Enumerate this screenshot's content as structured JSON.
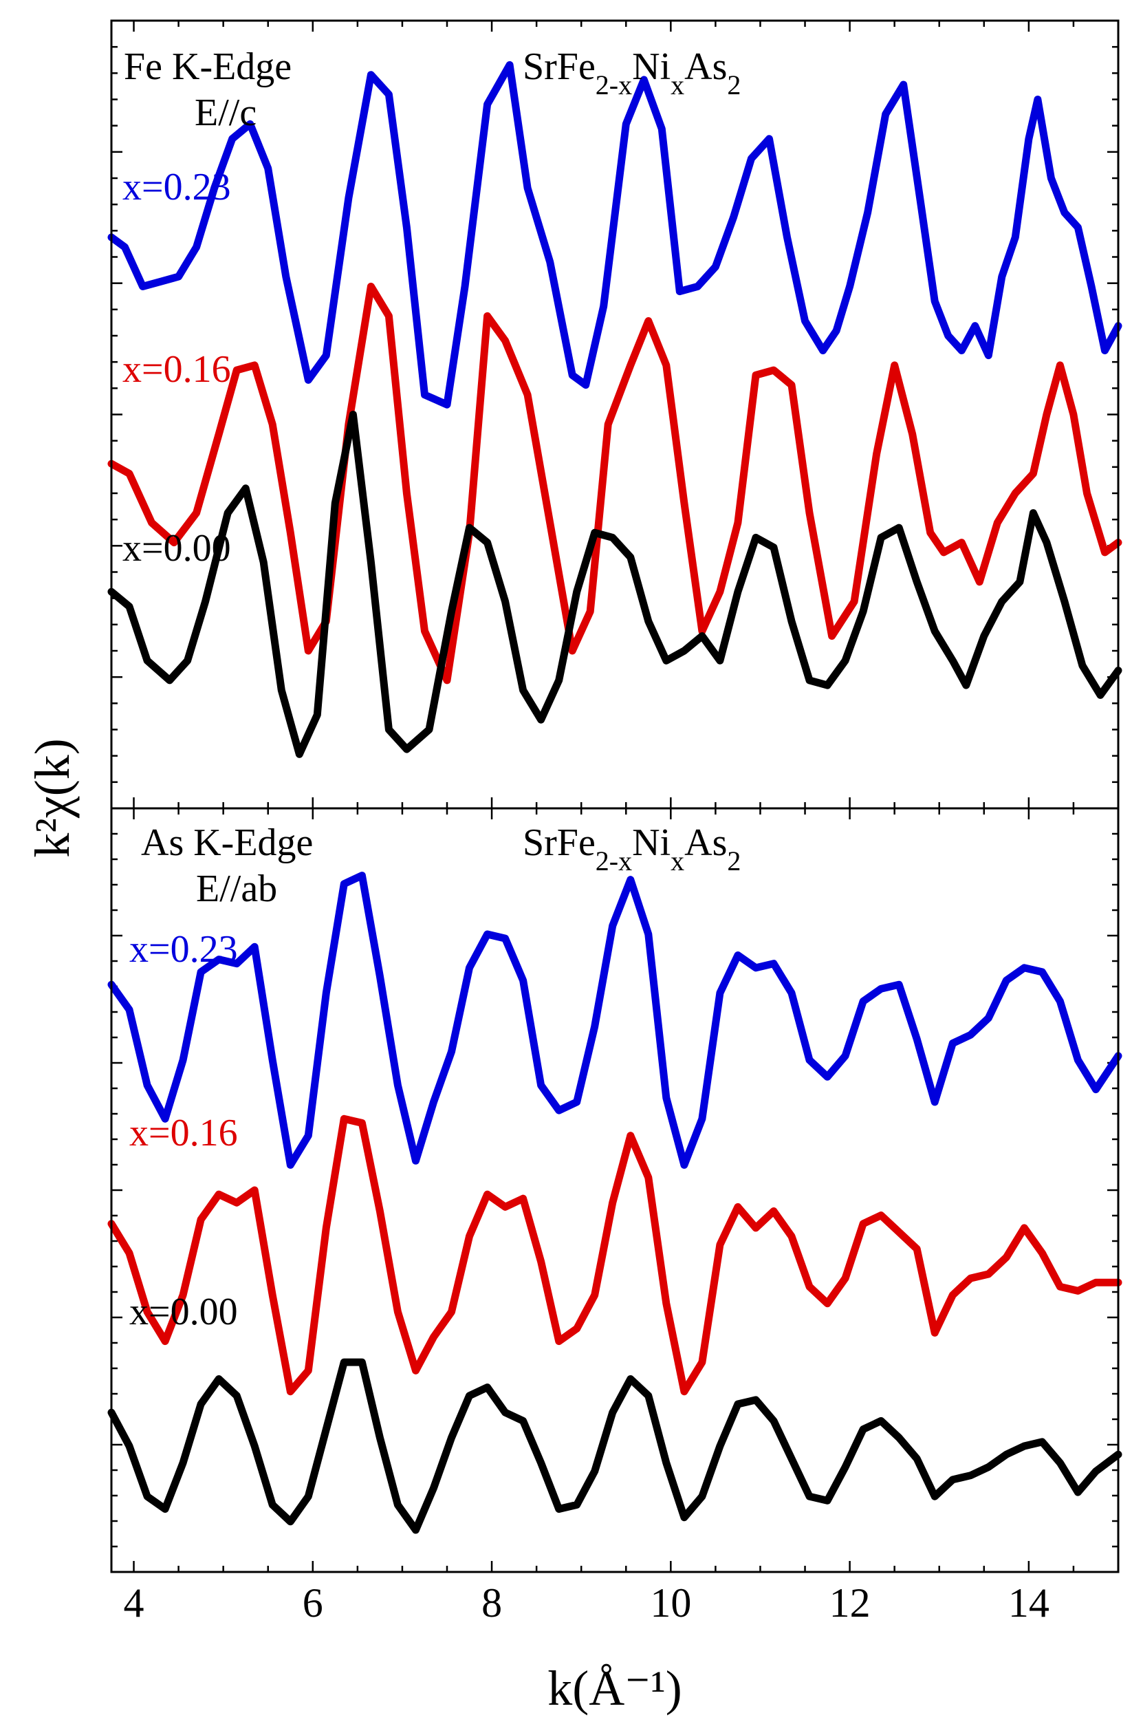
{
  "chart_data": {
    "type": "line",
    "xlabel": "k(Å⁻¹)",
    "ylabel": "k²χ(k)",
    "xlim": [
      3.75,
      15.0
    ],
    "x_ticks": [
      "4",
      "6",
      "8",
      "10",
      "12",
      "14"
    ],
    "x_tick_values": [
      4,
      6,
      8,
      10,
      12,
      14
    ],
    "compound": "SrFe2-xNixAs2",
    "panels": [
      {
        "edge": "Fe K-Edge",
        "polarization": "E//c",
        "compound_label": {
          "base": "SrFe",
          "s1": "2-x",
          "mid": "Ni",
          "s2": "x",
          "tail": "As",
          "s3": "2"
        },
        "ylim": [
          -4.8,
          3.2
        ],
        "series": [
          {
            "name": "x=0.23",
            "color": "#0000dd",
            "x": [
              3.75,
              3.9,
              4.1,
              4.3,
              4.5,
              4.7,
              4.9,
              5.1,
              5.3,
              5.5,
              5.7,
              5.95,
              6.15,
              6.4,
              6.65,
              6.85,
              7.05,
              7.25,
              7.5,
              7.7,
              7.95,
              8.2,
              8.4,
              8.65,
              8.9,
              9.05,
              9.25,
              9.5,
              9.7,
              9.9,
              10.1,
              10.3,
              10.5,
              10.7,
              10.9,
              11.1,
              11.3,
              11.5,
              11.7,
              11.85,
              12.0,
              12.2,
              12.4,
              12.6,
              12.8,
              12.95,
              13.1,
              13.25,
              13.4,
              13.55,
              13.7,
              13.85,
              14.0,
              14.1,
              14.25,
              14.4,
              14.55,
              14.7,
              14.85,
              15.0
            ],
            "y": [
              1.0,
              0.9,
              0.5,
              0.55,
              0.6,
              0.9,
              1.5,
              2.0,
              2.15,
              1.7,
              0.6,
              -0.45,
              -0.2,
              1.4,
              2.65,
              2.45,
              1.1,
              -0.6,
              -0.7,
              0.5,
              2.35,
              2.75,
              1.5,
              0.75,
              -0.4,
              -0.5,
              0.3,
              2.15,
              2.6,
              2.1,
              0.45,
              0.5,
              0.7,
              1.2,
              1.8,
              2.0,
              1.0,
              0.15,
              -0.15,
              0.05,
              0.5,
              1.25,
              2.25,
              2.55,
              1.3,
              0.35,
              0.0,
              -0.15,
              0.1,
              -0.2,
              0.6,
              1.0,
              2.0,
              2.4,
              1.6,
              1.25,
              1.1,
              0.5,
              -0.15,
              0.1
            ]
          },
          {
            "name": "x=0.16",
            "color": "#dd0000",
            "x": [
              3.75,
              3.95,
              4.2,
              4.45,
              4.7,
              4.95,
              5.15,
              5.35,
              5.55,
              5.75,
              5.95,
              6.15,
              6.4,
              6.65,
              6.85,
              7.05,
              7.25,
              7.5,
              7.75,
              7.95,
              8.15,
              8.4,
              8.65,
              8.9,
              9.1,
              9.3,
              9.55,
              9.75,
              9.95,
              10.15,
              10.35,
              10.55,
              10.75,
              10.95,
              11.15,
              11.35,
              11.55,
              11.8,
              12.05,
              12.3,
              12.5,
              12.7,
              12.9,
              13.05,
              13.25,
              13.45,
              13.65,
              13.85,
              14.05,
              14.2,
              14.35,
              14.5,
              14.65,
              14.85,
              15.0
            ],
            "y": [
              -1.3,
              -1.4,
              -1.9,
              -2.1,
              -1.8,
              -1.0,
              -0.35,
              -0.3,
              -0.9,
              -2.0,
              -3.2,
              -2.9,
              -0.9,
              0.5,
              0.2,
              -1.6,
              -3.0,
              -3.5,
              -2.0,
              0.2,
              -0.05,
              -0.6,
              -1.9,
              -3.2,
              -2.8,
              -0.9,
              -0.3,
              0.15,
              -0.3,
              -1.7,
              -3.0,
              -2.6,
              -1.9,
              -0.4,
              -0.35,
              -0.5,
              -1.8,
              -3.05,
              -2.7,
              -1.2,
              -0.3,
              -1.0,
              -2.0,
              -2.2,
              -2.1,
              -2.5,
              -1.9,
              -1.6,
              -1.4,
              -0.8,
              -0.3,
              -0.8,
              -1.6,
              -2.2,
              -2.1
            ]
          },
          {
            "name": "x=0.00",
            "color": "#000000",
            "x": [
              3.75,
              3.95,
              4.15,
              4.4,
              4.6,
              4.8,
              5.05,
              5.25,
              5.45,
              5.65,
              5.85,
              6.05,
              6.25,
              6.45,
              6.65,
              6.85,
              7.05,
              7.3,
              7.55,
              7.75,
              7.95,
              8.15,
              8.35,
              8.55,
              8.75,
              8.95,
              9.15,
              9.35,
              9.55,
              9.75,
              9.95,
              10.15,
              10.35,
              10.55,
              10.75,
              10.95,
              11.15,
              11.35,
              11.55,
              11.75,
              11.95,
              12.15,
              12.35,
              12.55,
              12.75,
              12.95,
              13.15,
              13.3,
              13.5,
              13.7,
              13.9,
              14.05,
              14.2,
              14.4,
              14.6,
              14.8,
              15.0
            ],
            "y": [
              -2.6,
              -2.75,
              -3.3,
              -3.5,
              -3.3,
              -2.7,
              -1.8,
              -1.55,
              -2.3,
              -3.6,
              -4.25,
              -3.85,
              -1.7,
              -0.8,
              -2.3,
              -4.0,
              -4.2,
              -4.0,
              -2.8,
              -1.95,
              -2.1,
              -2.7,
              -3.6,
              -3.9,
              -3.5,
              -2.6,
              -2.0,
              -2.05,
              -2.25,
              -2.9,
              -3.3,
              -3.2,
              -3.05,
              -3.3,
              -2.6,
              -2.05,
              -2.15,
              -2.9,
              -3.5,
              -3.55,
              -3.3,
              -2.8,
              -2.05,
              -1.95,
              -2.5,
              -3.0,
              -3.3,
              -3.55,
              -3.05,
              -2.7,
              -2.5,
              -1.8,
              -2.1,
              -2.7,
              -3.35,
              -3.65,
              -3.4
            ]
          }
        ]
      },
      {
        "edge": "As K-Edge",
        "polarization": "E//ab",
        "compound_label": {
          "base": "SrFe",
          "s1": "2-x",
          "mid": "Ni",
          "s2": "x",
          "tail": "As",
          "s3": "2"
        },
        "ylim": [
          -6.7,
          2.4
        ],
        "series": [
          {
            "name": "x=0.23",
            "color": "#0000dd",
            "x": [
              3.75,
              3.95,
              4.15,
              4.35,
              4.55,
              4.75,
              4.95,
              5.15,
              5.35,
              5.55,
              5.75,
              5.95,
              6.15,
              6.35,
              6.55,
              6.75,
              6.95,
              7.15,
              7.35,
              7.55,
              7.75,
              7.95,
              8.15,
              8.35,
              8.55,
              8.75,
              8.95,
              9.15,
              9.35,
              9.55,
              9.75,
              9.95,
              10.15,
              10.35,
              10.55,
              10.75,
              10.95,
              11.15,
              11.35,
              11.55,
              11.75,
              11.95,
              12.15,
              12.35,
              12.55,
              12.75,
              12.95,
              13.15,
              13.35,
              13.55,
              13.75,
              13.95,
              14.15,
              14.35,
              14.55,
              14.75,
              15.0
            ],
            "y": [
              0.3,
              0.0,
              -0.9,
              -1.3,
              -0.6,
              0.45,
              0.6,
              0.55,
              0.75,
              -0.6,
              -1.85,
              -1.5,
              0.2,
              1.5,
              1.6,
              0.4,
              -0.9,
              -1.8,
              -1.1,
              -0.5,
              0.5,
              0.9,
              0.85,
              0.35,
              -0.9,
              -1.2,
              -1.1,
              -0.2,
              1.0,
              1.55,
              0.9,
              -1.05,
              -1.85,
              -1.3,
              0.2,
              0.65,
              0.5,
              0.55,
              0.2,
              -0.6,
              -0.8,
              -0.55,
              0.1,
              0.25,
              0.3,
              -0.35,
              -1.1,
              -0.4,
              -0.3,
              -0.1,
              0.35,
              0.5,
              0.45,
              0.1,
              -0.6,
              -0.95,
              -0.55
            ]
          },
          {
            "name": "x=0.16",
            "color": "#dd0000",
            "x": [
              3.75,
              3.95,
              4.15,
              4.35,
              4.55,
              4.75,
              4.95,
              5.15,
              5.35,
              5.55,
              5.75,
              5.95,
              6.15,
              6.35,
              6.55,
              6.75,
              6.95,
              7.15,
              7.35,
              7.55,
              7.75,
              7.95,
              8.15,
              8.35,
              8.55,
              8.75,
              8.95,
              9.15,
              9.35,
              9.55,
              9.75,
              9.95,
              10.15,
              10.35,
              10.55,
              10.75,
              10.95,
              11.15,
              11.35,
              11.55,
              11.75,
              11.95,
              12.15,
              12.35,
              12.55,
              12.75,
              12.95,
              13.15,
              13.35,
              13.55,
              13.75,
              13.95,
              14.15,
              14.35,
              14.55,
              14.75,
              15.0
            ],
            "y": [
              -2.55,
              -2.9,
              -3.6,
              -3.95,
              -3.4,
              -2.5,
              -2.2,
              -2.3,
              -2.15,
              -3.4,
              -4.55,
              -4.3,
              -2.6,
              -1.3,
              -1.35,
              -2.4,
              -3.6,
              -4.3,
              -3.9,
              -3.6,
              -2.7,
              -2.2,
              -2.35,
              -2.25,
              -3.0,
              -3.95,
              -3.8,
              -3.4,
              -2.3,
              -1.5,
              -2.0,
              -3.5,
              -4.55,
              -4.2,
              -2.8,
              -2.35,
              -2.6,
              -2.4,
              -2.7,
              -3.3,
              -3.5,
              -3.2,
              -2.55,
              -2.45,
              -2.65,
              -2.85,
              -3.85,
              -3.4,
              -3.2,
              -3.15,
              -2.95,
              -2.6,
              -2.9,
              -3.3,
              -3.35,
              -3.25,
              -3.25
            ]
          },
          {
            "name": "x=0.00",
            "color": "#000000",
            "x": [
              3.75,
              3.95,
              4.15,
              4.35,
              4.55,
              4.75,
              4.95,
              5.15,
              5.35,
              5.55,
              5.75,
              5.95,
              6.15,
              6.35,
              6.55,
              6.75,
              6.95,
              7.15,
              7.35,
              7.55,
              7.75,
              7.95,
              8.15,
              8.35,
              8.55,
              8.75,
              8.95,
              9.15,
              9.35,
              9.55,
              9.75,
              9.95,
              10.15,
              10.35,
              10.55,
              10.75,
              10.95,
              11.15,
              11.35,
              11.55,
              11.75,
              11.95,
              12.15,
              12.35,
              12.55,
              12.75,
              12.95,
              13.15,
              13.35,
              13.55,
              13.75,
              13.95,
              14.15,
              14.35,
              14.55,
              14.75,
              15.0
            ],
            "y": [
              -4.8,
              -5.2,
              -5.8,
              -5.95,
              -5.4,
              -4.7,
              -4.4,
              -4.6,
              -5.2,
              -5.9,
              -6.1,
              -5.8,
              -5.0,
              -4.2,
              -4.2,
              -5.1,
              -5.9,
              -6.2,
              -5.7,
              -5.1,
              -4.6,
              -4.5,
              -4.8,
              -4.9,
              -5.4,
              -5.95,
              -5.9,
              -5.5,
              -4.8,
              -4.4,
              -4.6,
              -5.4,
              -6.05,
              -5.8,
              -5.2,
              -4.7,
              -4.65,
              -4.9,
              -5.35,
              -5.8,
              -5.85,
              -5.45,
              -5.0,
              -4.9,
              -5.1,
              -5.35,
              -5.8,
              -5.6,
              -5.55,
              -5.45,
              -5.3,
              -5.2,
              -5.15,
              -5.4,
              -5.75,
              -5.5,
              -5.3
            ]
          }
        ]
      }
    ]
  }
}
